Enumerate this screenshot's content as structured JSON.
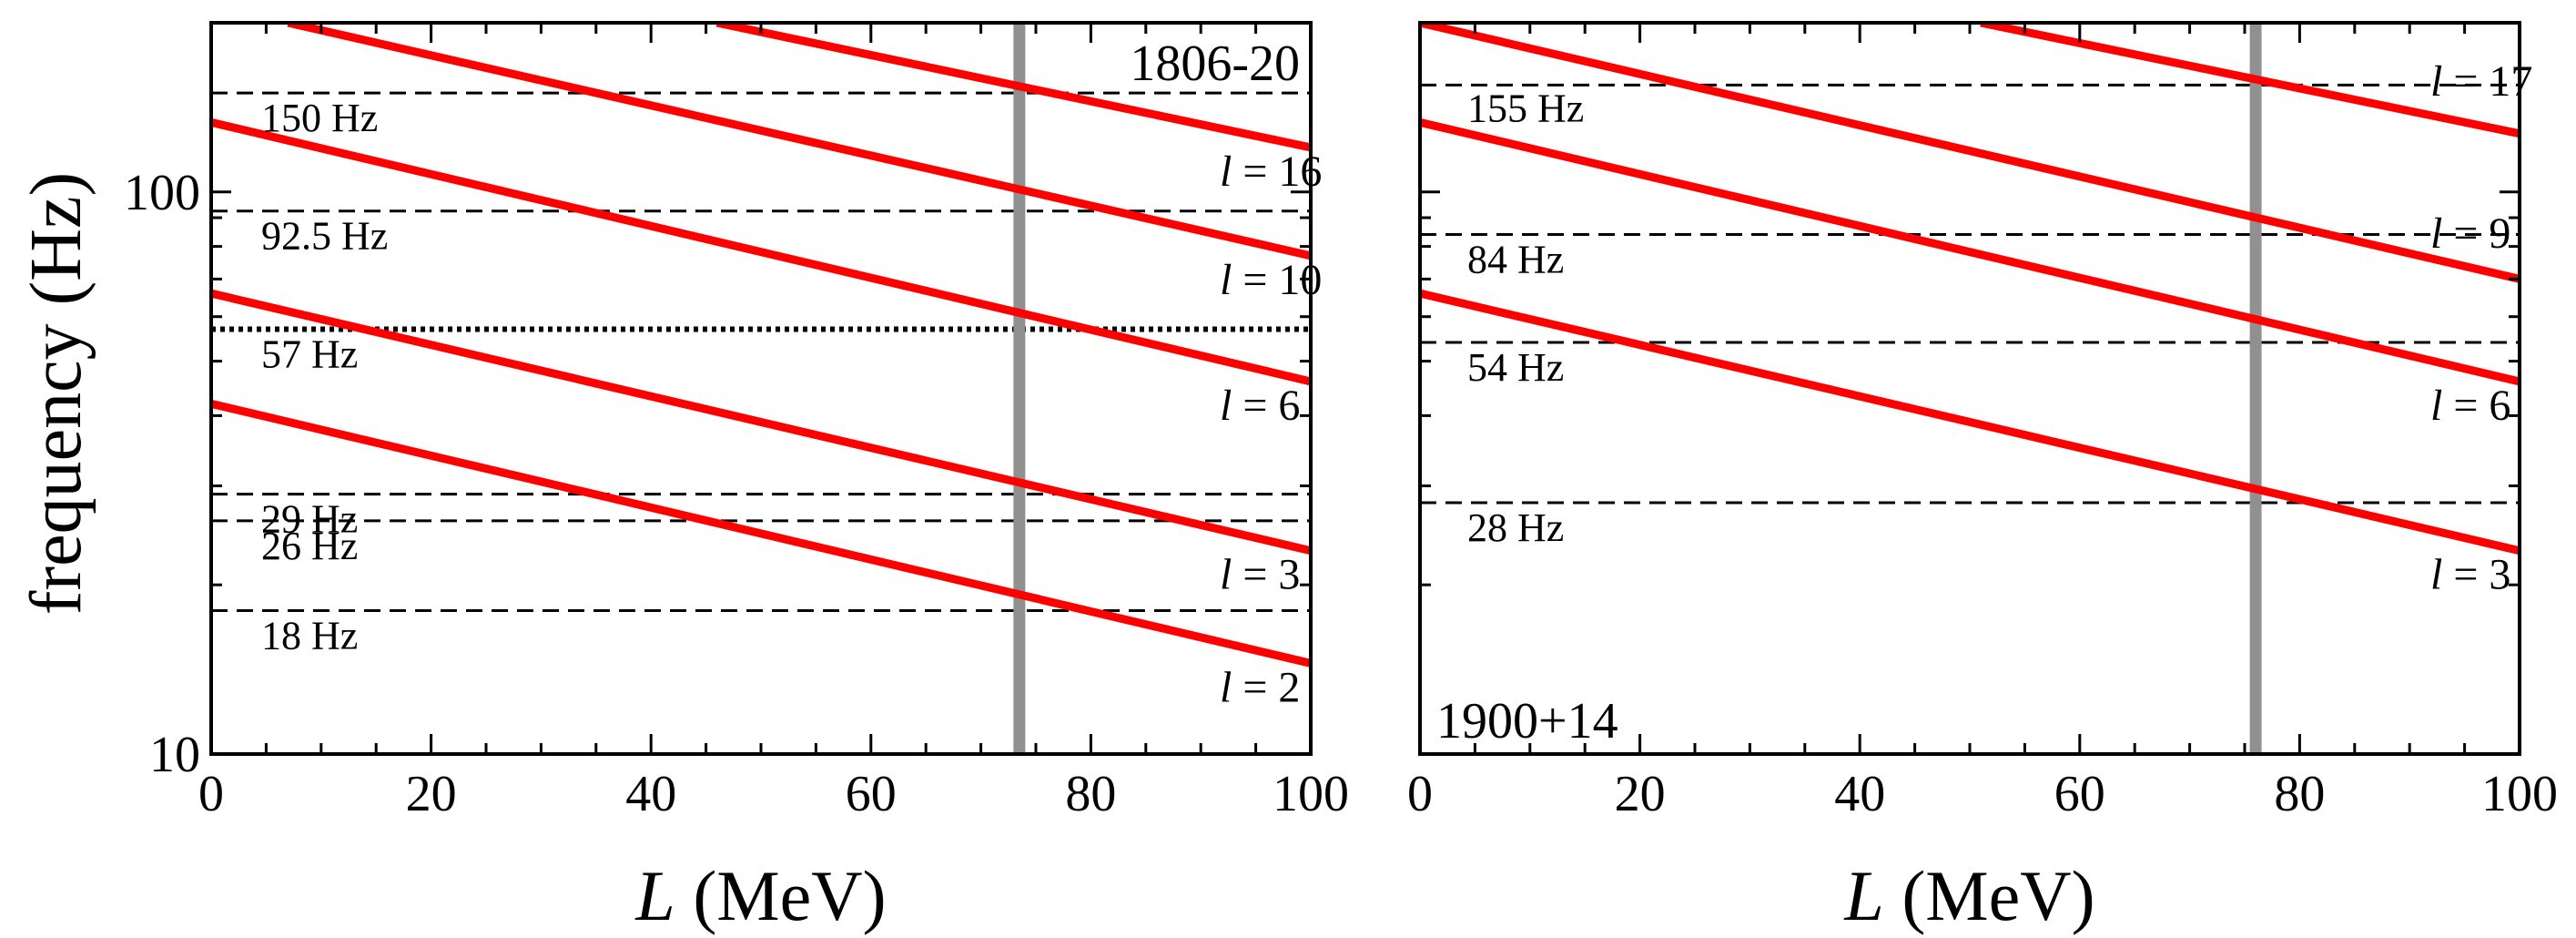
{
  "chart_data": [
    {
      "type": "line",
      "panel": "1806-20",
      "title": "1806-20",
      "title_position": "top-right",
      "xlabel_var": "L",
      "xlabel_unit": " (MeV)",
      "ylabel": "frequency (Hz)",
      "xlim": [
        0,
        100
      ],
      "ylim": [
        10,
        200
      ],
      "yscale": "log",
      "xticks": [
        0,
        20,
        40,
        60,
        80,
        100
      ],
      "xtick_labels": [
        "0",
        "20",
        "40",
        "60",
        "80",
        "100"
      ],
      "yticks": [
        10,
        100
      ],
      "ytick_labels": [
        "10",
        "100"
      ],
      "series": [
        {
          "name": "l = 2",
          "l": "2",
          "x": [
            0,
            100
          ],
          "values": [
            42,
            14.5
          ]
        },
        {
          "name": "l = 3",
          "l": "3",
          "x": [
            0,
            100
          ],
          "values": [
            66,
            23
          ]
        },
        {
          "name": "l = 6",
          "l": "6",
          "x": [
            0,
            100
          ],
          "values": [
            133,
            46
          ]
        },
        {
          "name": "l = 10",
          "l": "10",
          "x": [
            7,
            100
          ],
          "values": [
            200,
            77
          ]
        },
        {
          "name": "l = 16",
          "l": "16",
          "x": [
            46,
            100
          ],
          "values": [
            200,
            120
          ]
        }
      ],
      "reference_lines": [
        {
          "value": 150,
          "style": "dashed",
          "label": "150 Hz"
        },
        {
          "value": 92.5,
          "style": "dashed",
          "label": "92.5 Hz"
        },
        {
          "value": 57,
          "style": "dotted",
          "label": "57 Hz"
        },
        {
          "value": 29,
          "style": "dashed",
          "label": "29 Hz"
        },
        {
          "value": 26,
          "style": "dashed",
          "label": "26 Hz"
        },
        {
          "value": 18,
          "style": "dashed",
          "label": "18 Hz"
        }
      ],
      "vertical_line": {
        "x": 73.5,
        "color": "#909090"
      }
    },
    {
      "type": "line",
      "panel": "1900+14",
      "title": "1900+14",
      "title_position": "bottom-left",
      "xlabel_var": "L",
      "xlabel_unit": " (MeV)",
      "ylabel": "",
      "xlim": [
        0,
        100
      ],
      "ylim": [
        10,
        200
      ],
      "yscale": "log",
      "xticks": [
        0,
        20,
        40,
        60,
        80,
        100
      ],
      "xtick_labels": [
        "0",
        "20",
        "40",
        "60",
        "80",
        "100"
      ],
      "yticks": [
        10,
        100
      ],
      "ytick_labels": [],
      "series": [
        {
          "name": "l = 3",
          "l": "3",
          "x": [
            0,
            100
          ],
          "values": [
            66,
            23
          ]
        },
        {
          "name": "l = 6",
          "l": "6",
          "x": [
            0,
            100
          ],
          "values": [
            133,
            46
          ]
        },
        {
          "name": "l = 9",
          "l": "9",
          "x": [
            0,
            100
          ],
          "values": [
            200,
            70
          ]
        },
        {
          "name": "l = 17",
          "l": "17",
          "x": [
            51,
            100
          ],
          "values": [
            200,
            127
          ]
        }
      ],
      "reference_lines": [
        {
          "value": 155,
          "style": "dashed",
          "label": "155 Hz"
        },
        {
          "value": 84,
          "style": "dashed",
          "label": "84 Hz"
        },
        {
          "value": 54,
          "style": "dashed",
          "label": "54 Hz"
        },
        {
          "value": 28,
          "style": "dashed",
          "label": "28 Hz"
        }
      ],
      "vertical_line": {
        "x": 76,
        "color": "#909090"
      }
    }
  ],
  "colors": {
    "curve": "#ff0000",
    "vertical_line": "#909090",
    "reference_line": "#000000"
  }
}
